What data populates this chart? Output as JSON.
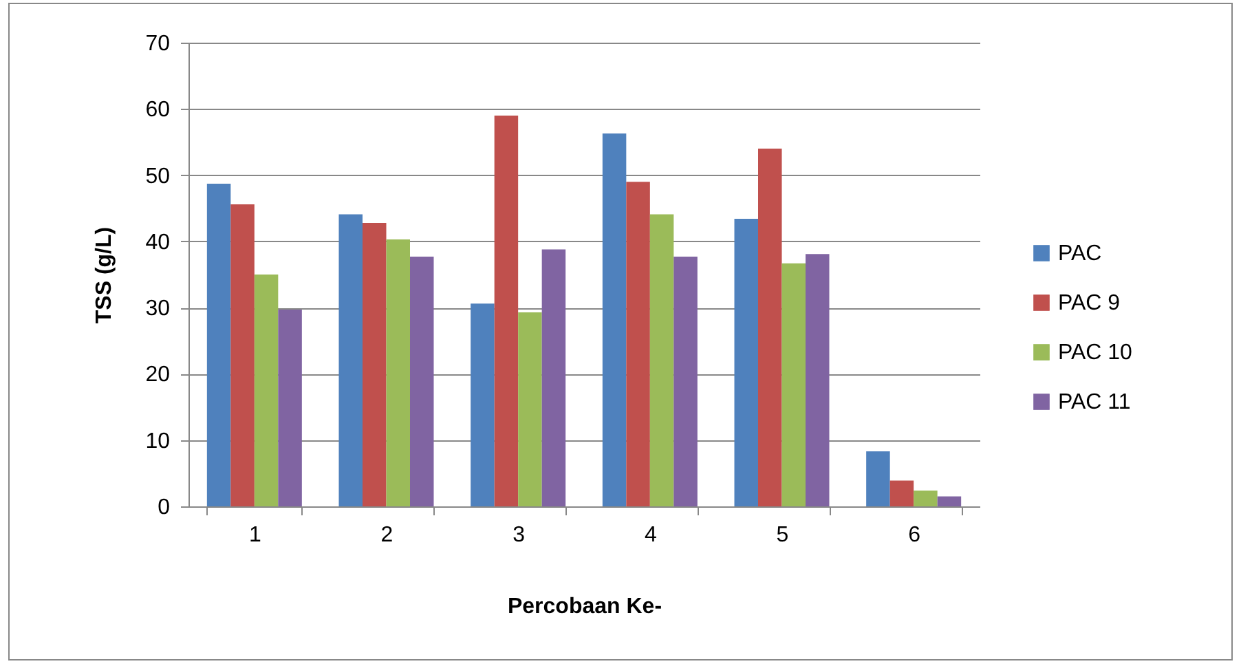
{
  "chart_data": {
    "type": "bar",
    "xlabel": "Percobaan Ke-",
    "ylabel": "TSS (g/L)",
    "categories": [
      "1",
      "2",
      "3",
      "4",
      "5",
      "6"
    ],
    "series": [
      {
        "name": "PAC",
        "color": "#4f81bd",
        "values": [
          48.7,
          44.1,
          30.6,
          56.3,
          43.4,
          8.3
        ]
      },
      {
        "name": "PAC 9",
        "color": "#c0504d",
        "values": [
          45.6,
          42.8,
          59.0,
          49.0,
          54.0,
          3.9
        ]
      },
      {
        "name": "PAC 10",
        "color": "#9bbb59",
        "values": [
          35.0,
          40.3,
          29.3,
          44.1,
          36.7,
          2.4
        ]
      },
      {
        "name": "PAC 11",
        "color": "#8064a2",
        "values": [
          29.7,
          37.7,
          38.8,
          37.7,
          38.1,
          1.5
        ]
      }
    ],
    "ylim": [
      0,
      70
    ],
    "yticks": [
      0,
      10,
      20,
      30,
      40,
      50,
      60,
      70
    ],
    "grid": "y",
    "legend": "right"
  }
}
